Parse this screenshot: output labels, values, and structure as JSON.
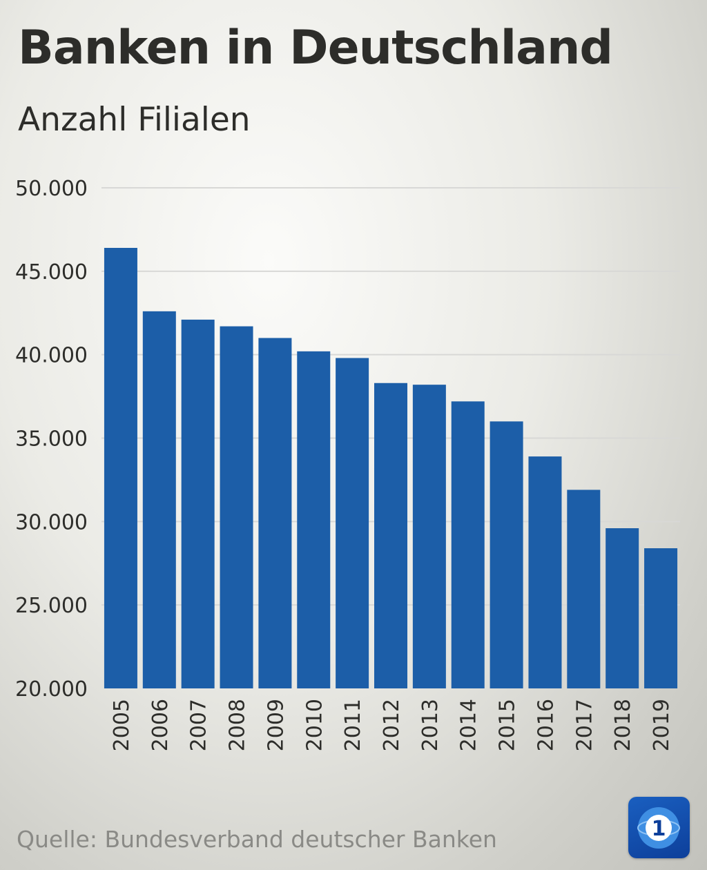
{
  "title": "Banken in Deutschland",
  "subtitle": "Anzahl Filialen",
  "source": "Quelle: Bundesverband deutscher Banken",
  "logo": {
    "icon": "das-erste-logo-icon",
    "label": "1"
  },
  "colors": {
    "bar": "#1c5ea8",
    "text": "#2d2d2a",
    "grid": "#d8d8d6",
    "source": "#8a8a86"
  },
  "chart_data": {
    "type": "bar",
    "title": "Banken in Deutschland",
    "subtitle": "Anzahl Filialen",
    "xlabel": "",
    "ylabel": "",
    "categories": [
      "2005",
      "2006",
      "2007",
      "2008",
      "2009",
      "2010",
      "2011",
      "2012",
      "2013",
      "2014",
      "2015",
      "2016",
      "2017",
      "2018",
      "2019"
    ],
    "values": [
      46400,
      42600,
      42100,
      41700,
      41000,
      40200,
      39800,
      38300,
      38200,
      37200,
      36000,
      33900,
      31900,
      29600,
      28400
    ],
    "ylim": [
      20000,
      50000
    ],
    "yticks": [
      20000,
      25000,
      30000,
      35000,
      40000,
      45000,
      50000
    ],
    "ytick_labels": [
      "20.000",
      "25.000",
      "30.000",
      "35.000",
      "40.000",
      "45.000",
      "50.000"
    ],
    "grid": true,
    "legend": "none"
  }
}
